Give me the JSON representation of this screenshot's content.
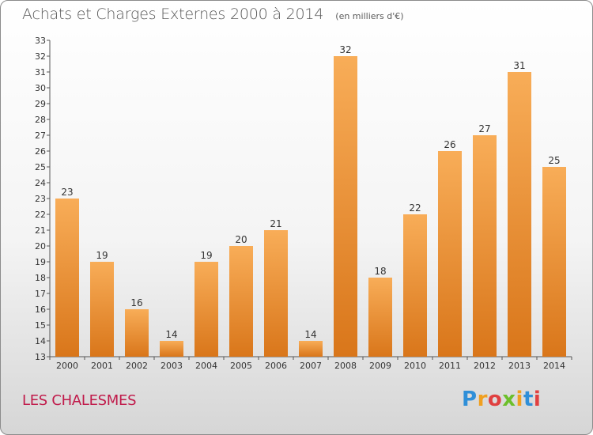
{
  "title": "Achats et Charges Externes 2000 à 2014",
  "unit_note": "(en milliers d'€)",
  "place": "LES CHALESMES",
  "logo": {
    "letters": [
      "P",
      "r",
      "o",
      "x",
      "i",
      "t",
      "i"
    ],
    "colors": [
      "#2f8fd8",
      "#f0a020",
      "#e04040",
      "#6cbf2a",
      "#f0a020",
      "#2f8fd8",
      "#e04040"
    ]
  },
  "colors": {
    "bar": "#f0922f",
    "bar_light": "#f8ad58",
    "bar_dark": "#d9761a",
    "place": "#c01a4a"
  },
  "chart_data": {
    "type": "bar",
    "title": "Achats et Charges Externes 2000 à 2014",
    "subtitle": "(en milliers d'€)",
    "categories": [
      "2000",
      "2001",
      "2002",
      "2003",
      "2004",
      "2005",
      "2006",
      "2007",
      "2008",
      "2009",
      "2010",
      "2011",
      "2012",
      "2013",
      "2014"
    ],
    "values": [
      23,
      19,
      16,
      14,
      19,
      20,
      21,
      14,
      32,
      18,
      22,
      26,
      27,
      31,
      25
    ],
    "ylim": [
      13,
      33
    ],
    "yticks": [
      13,
      14,
      15,
      16,
      17,
      18,
      19,
      20,
      21,
      22,
      23,
      24,
      25,
      26,
      27,
      28,
      29,
      30,
      31,
      32,
      33
    ],
    "grid": false,
    "xlabel": "",
    "ylabel": ""
  }
}
